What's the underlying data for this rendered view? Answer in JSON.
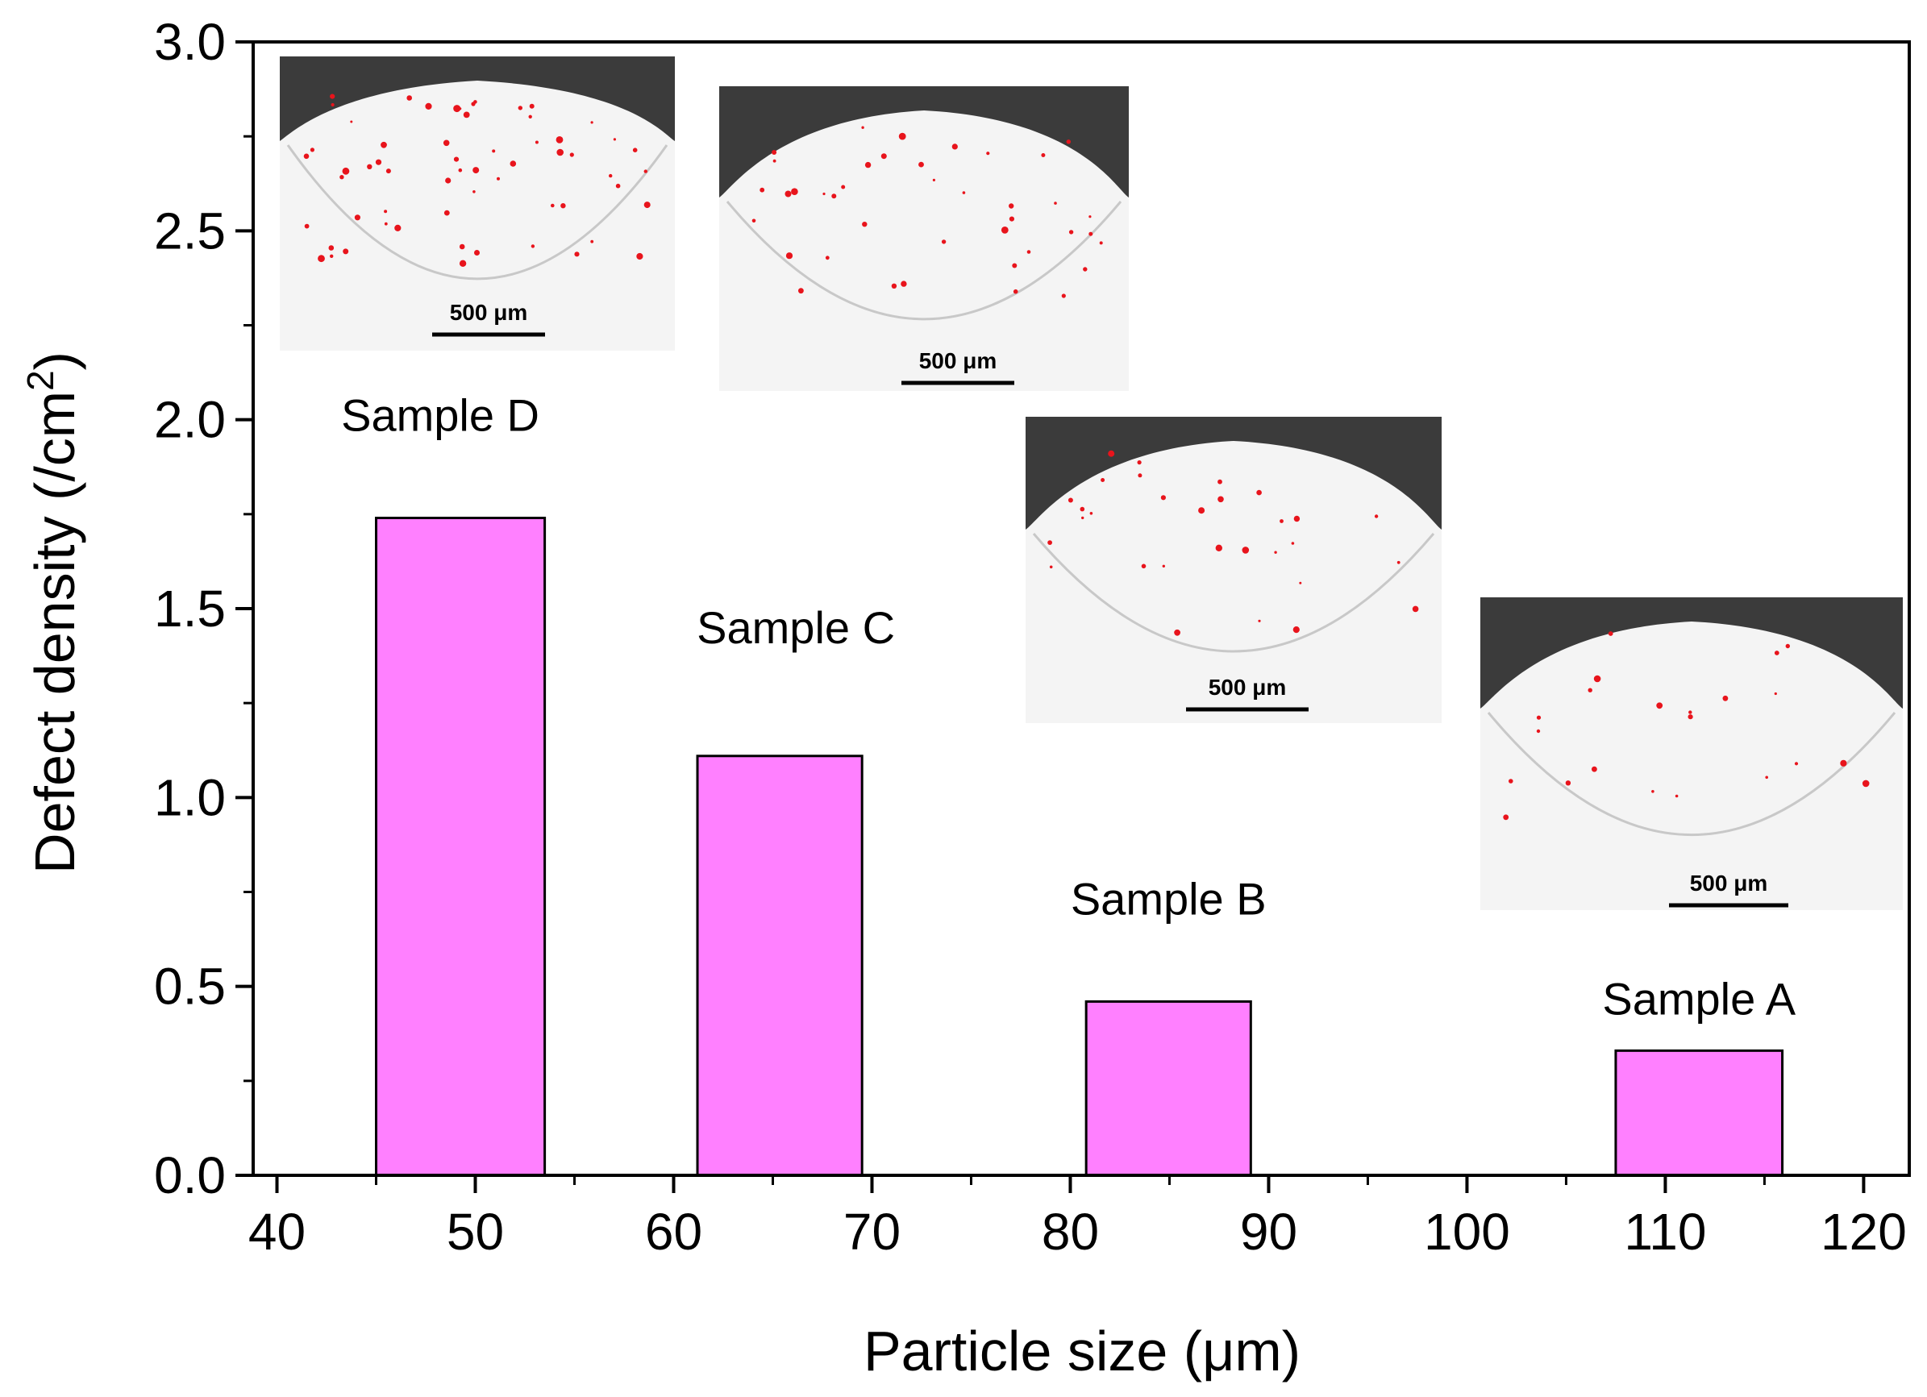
{
  "chart_data": {
    "type": "bar",
    "title": "",
    "xlabel": "Particle size (μm)",
    "ylabel": {
      "main": "Defect density (/cm",
      "sup": "2",
      "close": ")"
    },
    "xlim": [
      38.8,
      122.3
    ],
    "ylim": [
      0,
      3.0
    ],
    "x_ticks": [
      40,
      50,
      60,
      70,
      80,
      90,
      100,
      110,
      120
    ],
    "y_ticks": [
      0.0,
      0.5,
      1.0,
      1.5,
      2.0,
      2.5,
      3.0
    ],
    "y_tick_labels": [
      "0.0",
      "0.5",
      "1.0",
      "1.5",
      "2.0",
      "2.5",
      "3.0"
    ],
    "bar_color": "#ff80ff",
    "grid": false,
    "bars": [
      {
        "name": "Sample D",
        "x_start": 45,
        "x_end": 53.5,
        "value": 1.74
      },
      {
        "name": "Sample C",
        "x_start": 61.2,
        "x_end": 69.5,
        "value": 1.11
      },
      {
        "name": "Sample B",
        "x_start": 80.8,
        "x_end": 89.1,
        "value": 0.46
      },
      {
        "name": "Sample A",
        "x_start": 107.5,
        "x_end": 115.9,
        "value": 0.33
      }
    ],
    "insets": [
      {
        "sample": "Sample D",
        "scale_label": "500 μm"
      },
      {
        "sample": "Sample C",
        "scale_label": "500 μm"
      },
      {
        "sample": "Sample B",
        "scale_label": "500 μm"
      },
      {
        "sample": "Sample A",
        "scale_label": "500 μm"
      }
    ]
  },
  "colors": {
    "inset_dark": "#3b3b3b",
    "inset_light": "#f4f4f4",
    "defect_red": "#e8141c"
  }
}
